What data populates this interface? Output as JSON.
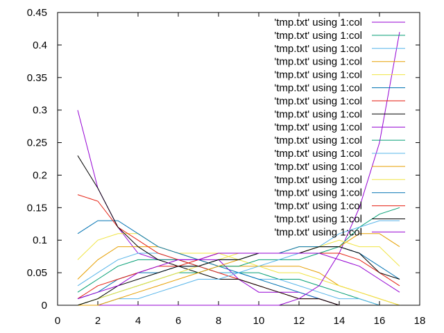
{
  "chart_data": {
    "type": "line",
    "title": "",
    "xlabel": "",
    "ylabel": "",
    "xlim": [
      0,
      18
    ],
    "ylim": [
      0,
      0.45
    ],
    "xticks": [
      "0",
      "2",
      "4",
      "6",
      "8",
      "10",
      "12",
      "14",
      "16",
      "18"
    ],
    "yticks": [
      "0",
      "0.05",
      "0.1",
      "0.15",
      "0.2",
      "0.25",
      "0.3",
      "0.35",
      "0.4",
      "0.45"
    ],
    "grid": false,
    "legend_position": "top-right",
    "x": [
      1,
      2,
      3,
      4,
      5,
      6,
      7,
      8,
      9,
      10,
      11,
      12,
      13,
      14,
      15,
      16,
      17
    ],
    "series": [
      {
        "name": "'tmp.txt' using 1:col",
        "color": "#9400d3",
        "values": [
          0.3,
          0.18,
          0.12,
          0.08,
          0.07,
          0.07,
          0.07,
          0.07,
          0.04,
          0.02,
          0.02,
          0.02,
          0.01,
          0.0,
          0.0,
          0.0,
          0.0
        ]
      },
      {
        "name": "'tmp.txt' using 1:col",
        "color": "#009e73",
        "values": [
          0.02,
          0.04,
          0.06,
          0.07,
          0.07,
          0.07,
          0.06,
          0.05,
          0.05,
          0.05,
          0.04,
          0.04,
          0.03,
          0.02,
          0.01,
          0.0,
          0.0
        ]
      },
      {
        "name": "'tmp.txt' using 1:col",
        "color": "#56b4e9",
        "values": [
          0.03,
          0.05,
          0.07,
          0.08,
          0.08,
          0.07,
          0.06,
          0.05,
          0.05,
          0.04,
          0.04,
          0.03,
          0.02,
          0.01,
          0.01,
          0.0,
          0.0
        ]
      },
      {
        "name": "'tmp.txt' using 1:col",
        "color": "#e69f00",
        "values": [
          0.04,
          0.07,
          0.09,
          0.09,
          0.09,
          0.08,
          0.07,
          0.06,
          0.06,
          0.06,
          0.06,
          0.06,
          0.05,
          0.03,
          0.02,
          0.01,
          0.0
        ]
      },
      {
        "name": "'tmp.txt' using 1:col",
        "color": "#f0e442",
        "values": [
          0.07,
          0.1,
          0.11,
          0.11,
          0.09,
          0.08,
          0.08,
          0.08,
          0.07,
          0.06,
          0.05,
          0.05,
          0.04,
          0.03,
          0.02,
          0.01,
          0.0
        ]
      },
      {
        "name": "'tmp.txt' using 1:col",
        "color": "#0072b2",
        "values": [
          0.11,
          0.13,
          0.13,
          0.11,
          0.09,
          0.08,
          0.07,
          0.06,
          0.05,
          0.04,
          0.03,
          0.02,
          0.01,
          0.0,
          0.0,
          0.0,
          0.0
        ]
      },
      {
        "name": "'tmp.txt' using 1:col",
        "color": "#e51e10",
        "values": [
          0.17,
          0.16,
          0.12,
          0.1,
          0.08,
          0.07,
          0.06,
          0.05,
          0.04,
          0.03,
          0.02,
          0.01,
          0.01,
          0.0,
          0.0,
          0.0,
          0.0
        ]
      },
      {
        "name": "'tmp.txt' using 1:col",
        "color": "#000000",
        "values": [
          0.23,
          0.18,
          0.12,
          0.09,
          0.07,
          0.06,
          0.05,
          0.04,
          0.04,
          0.03,
          0.02,
          0.01,
          0.01,
          0.0,
          0.0,
          0.0,
          0.0
        ]
      },
      {
        "name": "'tmp.txt' using 1:col",
        "color": "#9400d3",
        "values": [
          0.0,
          0.0,
          0.0,
          0.0,
          0.0,
          0.0,
          0.0,
          0.0,
          0.0,
          0.0,
          0.0,
          0.01,
          0.03,
          0.08,
          0.15,
          0.25,
          0.42
        ]
      },
      {
        "name": "'tmp.txt' using 1:col",
        "color": "#009e73",
        "values": [
          0.0,
          0.01,
          0.02,
          0.03,
          0.04,
          0.05,
          0.05,
          0.06,
          0.06,
          0.07,
          0.07,
          0.07,
          0.08,
          0.09,
          0.12,
          0.14,
          0.15
        ]
      },
      {
        "name": "'tmp.txt' using 1:col",
        "color": "#56b4e9",
        "values": [
          0.0,
          0.0,
          0.01,
          0.01,
          0.02,
          0.03,
          0.04,
          0.04,
          0.05,
          0.06,
          0.07,
          0.08,
          0.09,
          0.11,
          0.12,
          0.13,
          0.13
        ]
      },
      {
        "name": "'tmp.txt' using 1:col",
        "color": "#e69f00",
        "values": [
          0.0,
          0.0,
          0.01,
          0.02,
          0.03,
          0.04,
          0.05,
          0.06,
          0.07,
          0.08,
          0.08,
          0.08,
          0.09,
          0.09,
          0.11,
          0.11,
          0.09
        ]
      },
      {
        "name": "'tmp.txt' using 1:col",
        "color": "#f0e442",
        "values": [
          0.0,
          0.01,
          0.02,
          0.03,
          0.04,
          0.05,
          0.06,
          0.07,
          0.08,
          0.08,
          0.08,
          0.09,
          0.09,
          0.1,
          0.09,
          0.09,
          0.06
        ]
      },
      {
        "name": "'tmp.txt' using 1:col",
        "color": "#0072b2",
        "values": [
          0.01,
          0.02,
          0.04,
          0.05,
          0.05,
          0.06,
          0.06,
          0.07,
          0.07,
          0.08,
          0.08,
          0.09,
          0.09,
          0.09,
          0.08,
          0.06,
          0.04
        ]
      },
      {
        "name": "'tmp.txt' using 1:col",
        "color": "#e51e10",
        "values": [
          0.01,
          0.03,
          0.04,
          0.05,
          0.06,
          0.06,
          0.07,
          0.08,
          0.08,
          0.08,
          0.08,
          0.08,
          0.08,
          0.08,
          0.07,
          0.05,
          0.03
        ]
      },
      {
        "name": "'tmp.txt' using 1:col",
        "color": "#000000",
        "values": [
          0.0,
          0.01,
          0.03,
          0.04,
          0.05,
          0.06,
          0.06,
          0.07,
          0.07,
          0.08,
          0.08,
          0.08,
          0.09,
          0.09,
          0.08,
          0.05,
          0.04
        ]
      },
      {
        "name": "'tmp.txt' using 1:col",
        "color": "#9400d3",
        "values": [
          0.01,
          0.02,
          0.03,
          0.05,
          0.06,
          0.07,
          0.07,
          0.08,
          0.08,
          0.08,
          0.08,
          0.08,
          0.08,
          0.07,
          0.06,
          0.04,
          0.02
        ]
      }
    ]
  }
}
